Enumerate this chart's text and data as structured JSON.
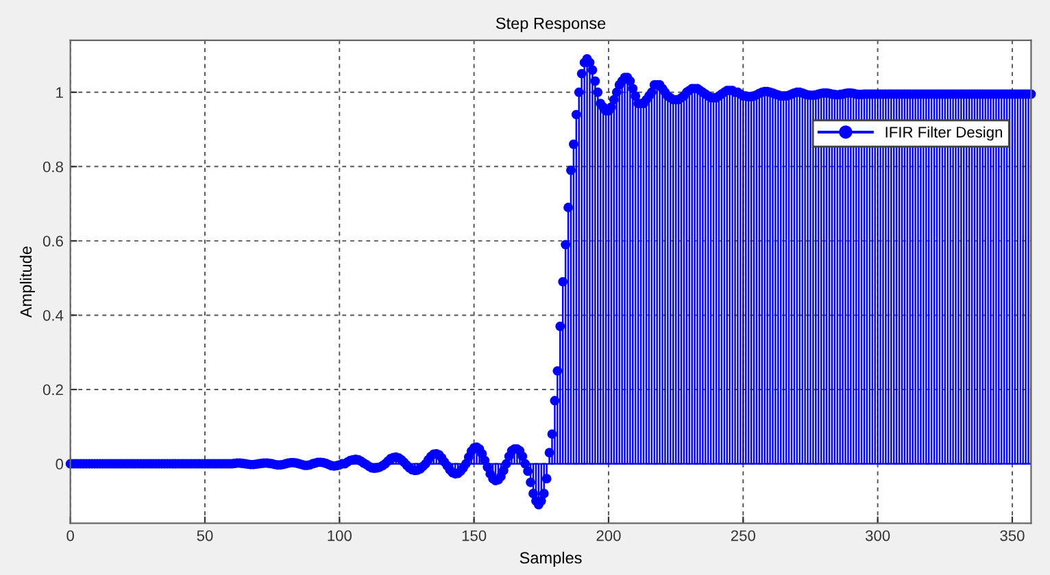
{
  "chart_data": {
    "type": "lollipop",
    "title": "Step Response",
    "xlabel": "Samples",
    "ylabel": "Amplitude",
    "xlim": [
      0,
      357
    ],
    "xticks": [
      0,
      50,
      100,
      150,
      200,
      250,
      300,
      350
    ],
    "ylim": [
      -0.16,
      1.14
    ],
    "yticks": [
      0,
      0.2,
      0.4,
      0.6,
      0.8,
      1
    ],
    "grid": true,
    "legend": "top right",
    "marker": "circle",
    "ref_lines": [
      {
        "axis": "y",
        "value": 0,
        "color": "#0000ff"
      }
    ],
    "x": [
      0,
      1,
      2,
      3,
      4,
      5,
      6,
      7,
      8,
      9,
      10,
      11,
      12,
      13,
      14,
      15,
      16,
      17,
      18,
      19,
      20,
      21,
      22,
      23,
      24,
      25,
      26,
      27,
      28,
      29,
      30,
      31,
      32,
      33,
      34,
      35,
      36,
      37,
      38,
      39,
      40,
      41,
      42,
      43,
      44,
      45,
      46,
      47,
      48,
      49,
      50,
      51,
      52,
      53,
      54,
      55,
      56,
      57,
      58,
      59,
      60,
      61,
      62,
      63,
      64,
      65,
      66,
      67,
      68,
      69,
      70,
      71,
      72,
      73,
      74,
      75,
      76,
      77,
      78,
      79,
      80,
      81,
      82,
      83,
      84,
      85,
      86,
      87,
      88,
      89,
      90,
      91,
      92,
      93,
      94,
      95,
      96,
      97,
      98,
      99,
      100,
      101,
      102,
      103,
      104,
      105,
      106,
      107,
      108,
      109,
      110,
      111,
      112,
      113,
      114,
      115,
      116,
      117,
      118,
      119,
      120,
      121,
      122,
      123,
      124,
      125,
      126,
      127,
      128,
      129,
      130,
      131,
      132,
      133,
      134,
      135,
      136,
      137,
      138,
      139,
      140,
      141,
      142,
      143,
      144,
      145,
      146,
      147,
      148,
      149,
      150,
      151,
      152,
      153,
      154,
      155,
      156,
      157,
      158,
      159,
      160,
      161,
      162,
      163,
      164,
      165,
      166,
      167,
      168,
      169,
      170,
      171,
      172,
      173,
      174,
      175,
      176,
      177,
      178,
      179,
      180,
      181,
      182,
      183,
      184,
      185,
      186,
      187,
      188,
      189,
      190,
      191,
      192,
      193,
      194,
      195,
      196,
      197,
      198,
      199,
      200,
      201,
      202,
      203,
      204,
      205,
      206,
      207,
      208,
      209,
      210,
      211,
      212,
      213,
      214,
      215,
      216,
      217,
      218,
      219,
      220,
      221,
      222,
      223,
      224,
      225,
      226,
      227,
      228,
      229,
      230,
      231,
      232,
      233,
      234,
      235,
      236,
      237,
      238,
      239,
      240,
      241,
      242,
      243,
      244,
      245,
      246,
      247,
      248,
      249,
      250,
      251,
      252,
      253,
      254,
      255,
      256,
      257,
      258,
      259,
      260,
      261,
      262,
      263,
      264,
      265,
      266,
      267,
      268,
      269,
      270,
      271,
      272,
      273,
      274,
      275,
      276,
      277,
      278,
      279,
      280,
      281,
      282,
      283,
      284,
      285,
      286,
      287,
      288,
      289,
      290,
      291,
      292,
      293,
      294,
      295,
      296,
      297,
      298,
      299,
      300,
      301,
      302,
      303,
      304,
      305,
      306,
      307,
      308,
      309,
      310,
      311,
      312,
      313,
      314,
      315,
      316,
      317,
      318,
      319,
      320,
      321,
      322,
      323,
      324,
      325,
      326,
      327,
      328,
      329,
      330,
      331,
      332,
      333,
      334,
      335,
      336,
      337,
      338,
      339,
      340,
      341,
      342,
      343,
      344,
      345,
      346,
      347,
      348,
      349,
      350,
      351,
      352,
      353,
      354,
      355,
      356,
      357
    ],
    "series": [
      {
        "name": "IFIR Filter Design",
        "color": "#0000ff",
        "values": [
          0,
          0,
          0,
          0,
          0,
          0,
          0,
          0,
          0,
          0,
          0,
          0,
          0,
          0,
          0,
          0,
          0,
          0,
          0,
          0,
          0,
          0,
          0,
          0,
          0,
          0,
          0,
          0,
          0,
          0,
          0,
          0,
          0,
          0,
          0,
          0,
          0,
          0,
          0,
          0,
          0,
          0,
          0,
          0,
          0,
          0,
          0,
          0,
          0,
          0,
          0,
          0,
          0,
          0,
          0,
          0,
          0,
          0,
          0,
          0,
          0,
          0.001,
          0.002,
          0.002,
          0.001,
          0,
          -0.001,
          -0.002,
          -0.002,
          -0.001,
          0,
          0.001,
          0.002,
          0.002,
          0.001,
          0,
          -0.002,
          -0.003,
          -0.003,
          -0.002,
          0,
          0.002,
          0.003,
          0.003,
          0.002,
          0,
          -0.002,
          -0.004,
          -0.004,
          -0.003,
          0,
          0.002,
          0.004,
          0.004,
          0.003,
          0.001,
          -0.002,
          -0.005,
          -0.006,
          -0.005,
          -0.003,
          0,
          0,
          0.005,
          0.009,
          0.011,
          0.012,
          0.011,
          0.007,
          0.002,
          -0.002,
          -0.007,
          -0.011,
          -0.012,
          -0.011,
          -0.009,
          -0.005,
          0,
          0.007,
          0.014,
          0.017,
          0.018,
          0.016,
          0.011,
          0.004,
          -0.004,
          -0.011,
          -0.016,
          -0.018,
          -0.017,
          -0.014,
          -0.007,
          0,
          0.011,
          0.02,
          0.026,
          0.027,
          0.024,
          0.016,
          0.005,
          -0.005,
          -0.016,
          -0.024,
          -0.027,
          -0.026,
          -0.02,
          -0.011,
          0,
          0.018,
          0.034,
          0.043,
          0.045,
          0.04,
          0.027,
          0.009,
          -0.009,
          -0.027,
          -0.04,
          -0.045,
          -0.043,
          -0.034,
          -0.018,
          0,
          0.02,
          0.035,
          0.04,
          0.04,
          0.035,
          0.02,
          0,
          -0.02,
          -0.05,
          -0.08,
          -0.1,
          -0.11,
          -0.1,
          -0.08,
          -0.04,
          0.03,
          0.08,
          0.17,
          0.25,
          0.37,
          0.49,
          0.59,
          0.69,
          0.79,
          0.86,
          0.94,
          1.0,
          1.05,
          1.08,
          1.09,
          1.08,
          1.06,
          1.03,
          1.0,
          0.97,
          0.96,
          0.95,
          0.95,
          0.96,
          0.98,
          1.0,
          1.02,
          1.03,
          1.04,
          1.04,
          1.03,
          1.01,
          0.99,
          0.97,
          0.97,
          0.97,
          0.98,
          0.99,
          1.0,
          1.02,
          1.02,
          1.02,
          1.01,
          1.0,
          0.99,
          0.985,
          0.98,
          0.98,
          0.98,
          0.985,
          0.99,
          1.0,
          1.005,
          1.01,
          1.01,
          1.01,
          1.005,
          1.0,
          0.995,
          0.99,
          0.985,
          0.985,
          0.985,
          0.99,
          0.995,
          1.0,
          1.005,
          1.005,
          1.005,
          1.0,
          1.0,
          0.995,
          0.99,
          0.99,
          0.988,
          0.988,
          0.99,
          0.993,
          0.997,
          1.0,
          1.002,
          1.002,
          1.0,
          0.998,
          0.995,
          0.993,
          0.99,
          0.99,
          0.99,
          0.992,
          0.995,
          0.998,
          1.0,
          1.0,
          0.998,
          0.995,
          0.993,
          0.992,
          0.992,
          0.993,
          0.995,
          0.997,
          0.998,
          0.998,
          0.997,
          0.995,
          0.994,
          0.993,
          0.994,
          0.995,
          0.997,
          0.998,
          0.998,
          0.997,
          0.995,
          0.994,
          0.994,
          0.995,
          0.995,
          0.995,
          0.995,
          0.995,
          0.995,
          0.995,
          0.995,
          0.995,
          0.995,
          0.995,
          0.995,
          0.995,
          0.995,
          0.995,
          0.995,
          0.995,
          0.995,
          0.995,
          0.995,
          0.995,
          0.995,
          0.995,
          0.995,
          0.995,
          0.995,
          0.995,
          0.995,
          0.995,
          0.995,
          0.995,
          0.995,
          0.995,
          0.995,
          0.995,
          0.995,
          0.995,
          0.995,
          0.995,
          0.995,
          0.995,
          0.995,
          0.995,
          0.995,
          0.995,
          0.995,
          0.995,
          0.995,
          0.995,
          0.995,
          0.995,
          0.995,
          0.995,
          0.995,
          0.995,
          0.995,
          0.995,
          0.995,
          0.995,
          0.995,
          0.995,
          0.995,
          0.995
        ]
      }
    ]
  }
}
